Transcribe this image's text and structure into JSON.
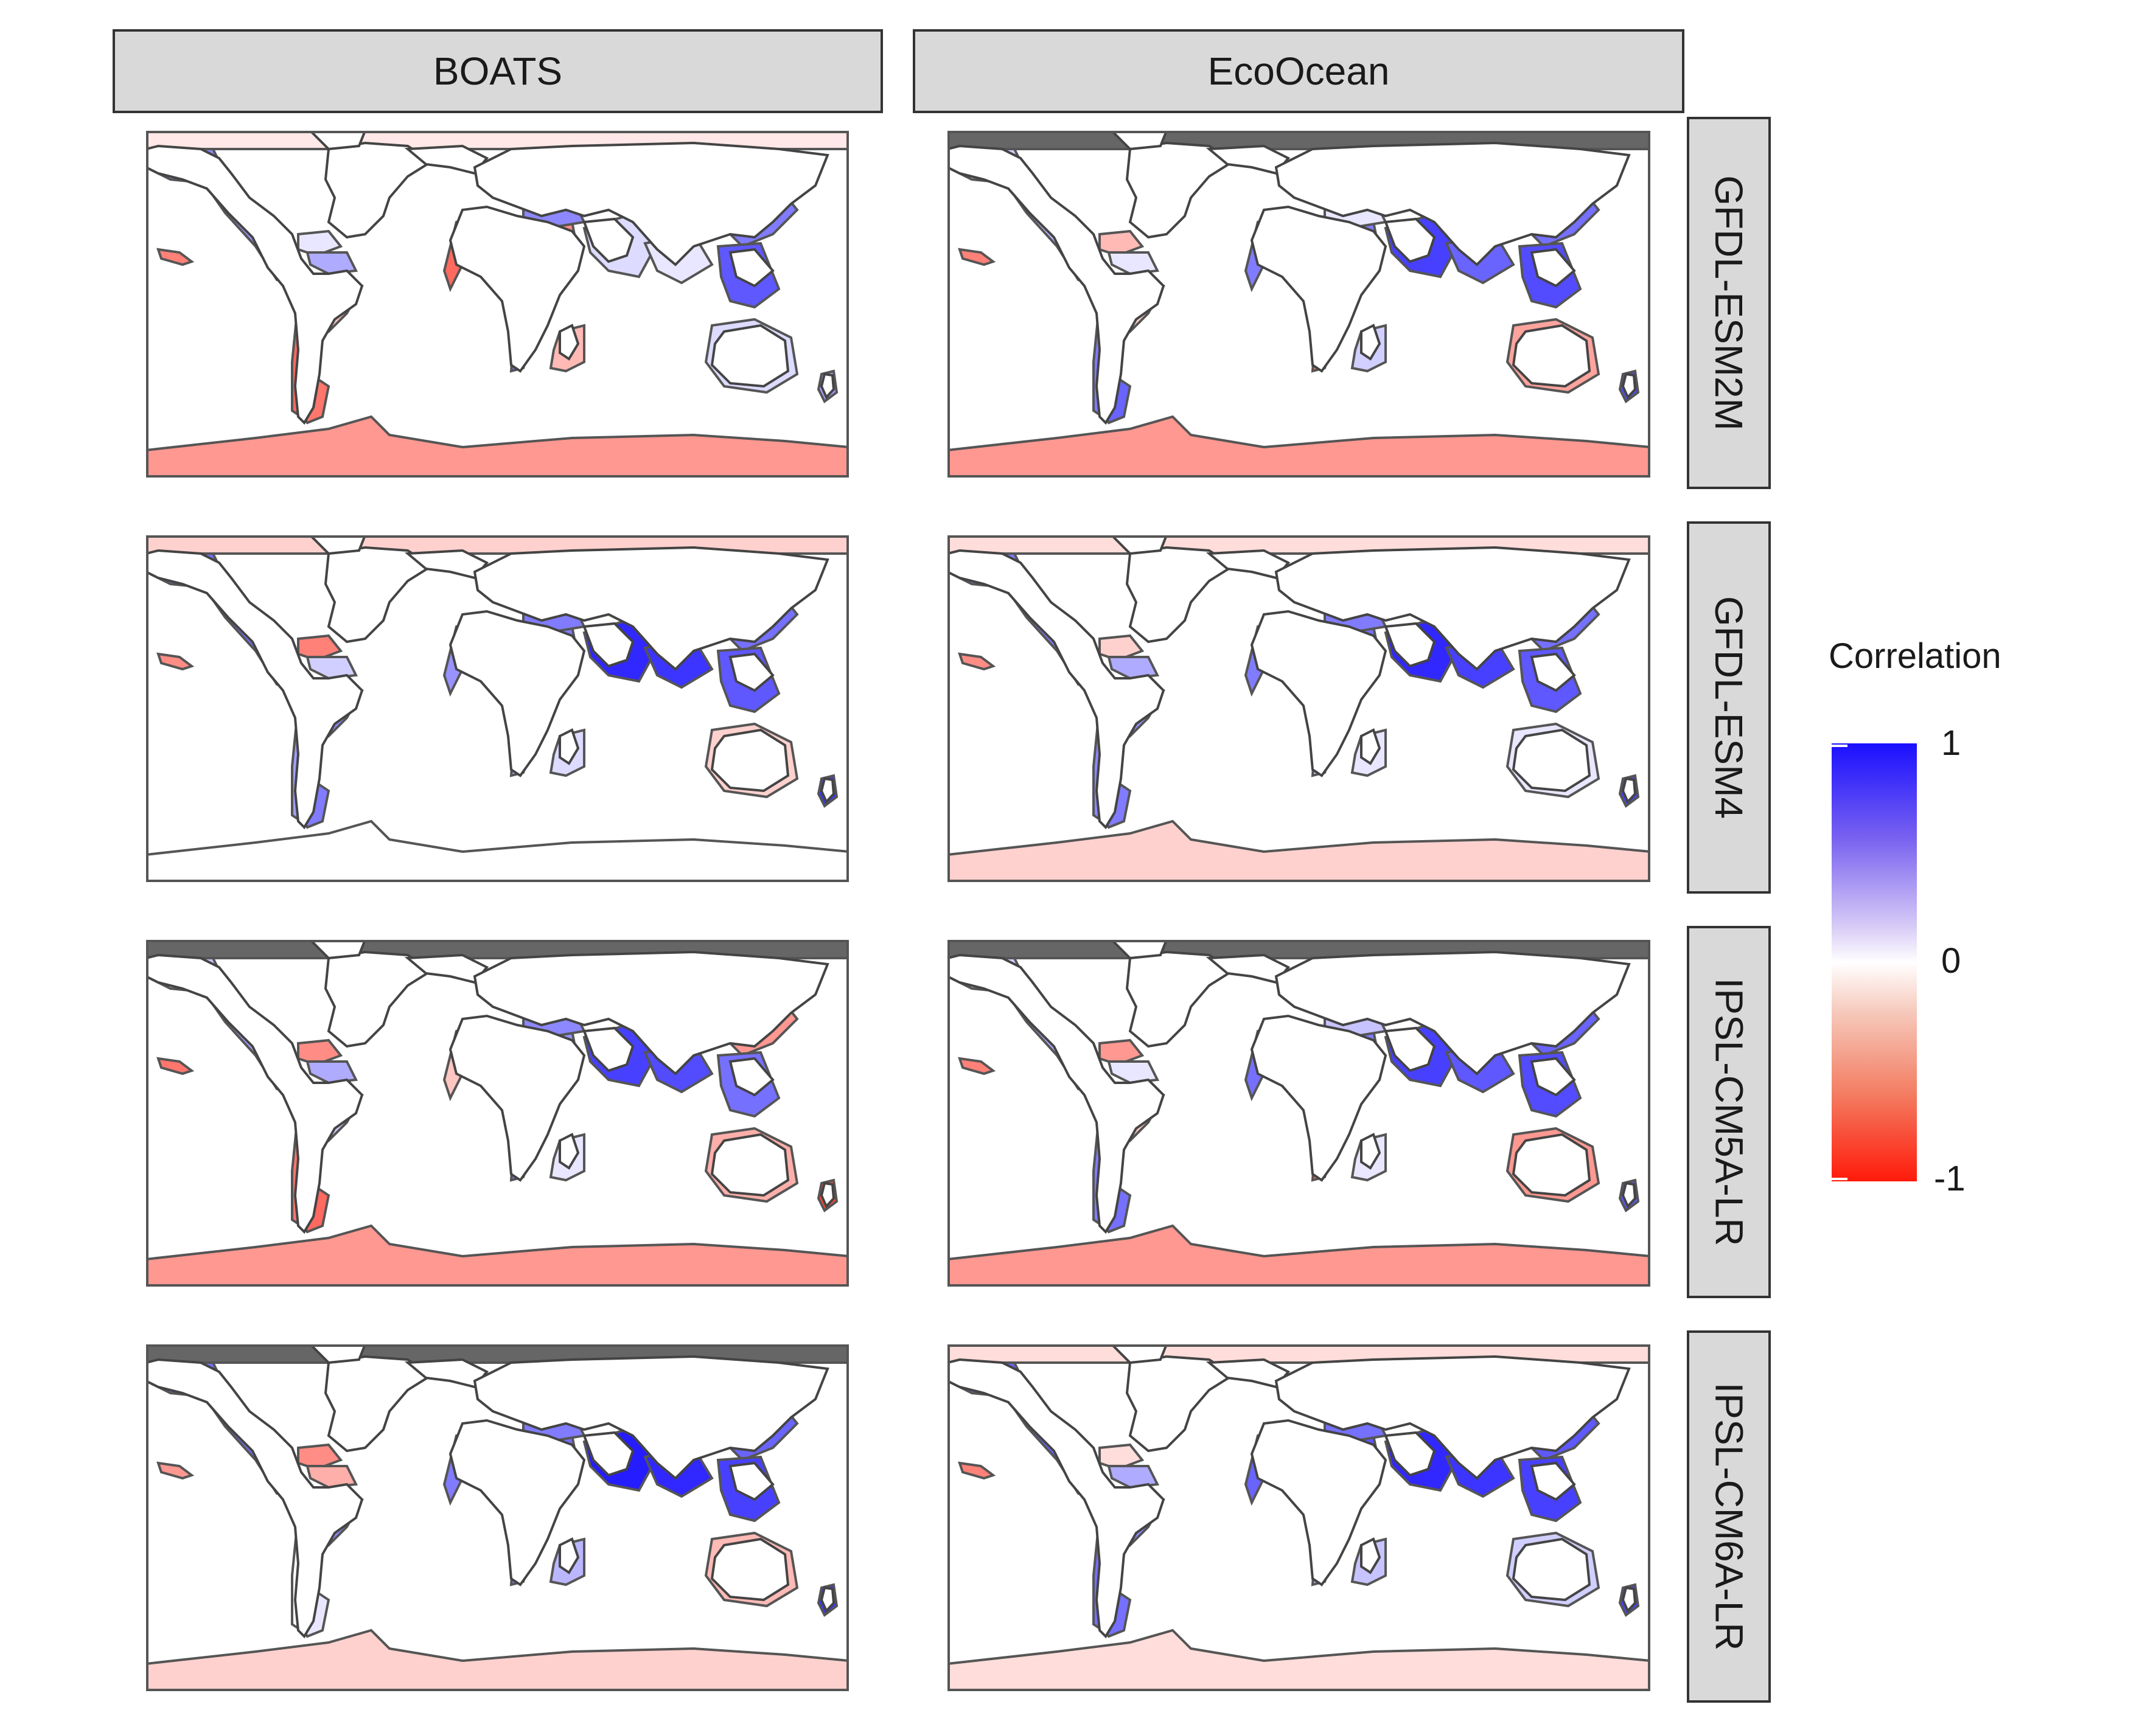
{
  "columns": [
    "BOATS",
    "EcoOcean"
  ],
  "rows": [
    "GFDL-ESM2M",
    "GFDL-ESM4",
    "IPSL-CM5A-LR",
    "IPSL-CM6A-LR"
  ],
  "legend": {
    "title": "Correlation",
    "ticks": [
      "1",
      "0",
      "-1"
    ],
    "colors": {
      "high": "#1a10ff",
      "mid": "#ffffff",
      "low": "#ff1a0a",
      "missing": "#666666"
    }
  },
  "panels": [
    {
      "col": "BOATS",
      "row": "GFDL-ESM2M",
      "regions": {
        "arctic": -0.1,
        "north_pacific": 0.5,
        "west_americas": 0.45,
        "north_atlantic_w": -0.3,
        "caribbean": 0.1,
        "gulf": 0.35,
        "east_americas": -0.25,
        "humboldt": -0.65,
        "patagonia": -0.6,
        "europe_north": -0.3,
        "canary": -0.65,
        "guinea": -0.5,
        "benguela": 0.6,
        "agulhas": -0.3,
        "med": 0.5,
        "arabian": 0.15,
        "bengal": 0.1,
        "east_asia": 0.55,
        "se_asia": 0.7,
        "australia": 0.15,
        "new_zealand": 0.4,
        "siberia": -0.6,
        "antarctic": -0.45,
        "hawaii": -0.55
      }
    },
    {
      "col": "EcoOcean",
      "row": "GFDL-ESM2M",
      "regions": {
        "arctic": null,
        "north_pacific": 0.2,
        "west_americas": 0.3,
        "north_atlantic_w": -0.1,
        "caribbean": -0.3,
        "gulf": 0.1,
        "east_americas": -0.2,
        "humboldt": 0.55,
        "patagonia": 0.65,
        "europe_north": 0.4,
        "canary": 0.55,
        "guinea": 0.55,
        "benguela": -0.6,
        "agulhas": 0.2,
        "med": 0.1,
        "arabian": 0.8,
        "bengal": 0.65,
        "east_asia": 0.6,
        "se_asia": 0.75,
        "australia": -0.4,
        "new_zealand": 0.75,
        "siberia": -0.2,
        "antarctic": -0.45,
        "hawaii": -0.55
      }
    },
    {
      "col": "BOATS",
      "row": "GFDL-ESM4",
      "regions": {
        "arctic": -0.2,
        "north_pacific": 0.6,
        "west_americas": 0.6,
        "north_atlantic_w": -0.65,
        "caribbean": -0.55,
        "gulf": 0.2,
        "east_americas": 0.5,
        "humboldt": 0.4,
        "patagonia": 0.55,
        "europe_north": 0.5,
        "canary": 0.45,
        "guinea": 0.55,
        "benguela": 0.35,
        "agulhas": 0.15,
        "med": 0.55,
        "arabian": 0.9,
        "bengal": 0.85,
        "east_asia": 0.6,
        "se_asia": 0.7,
        "australia": -0.2,
        "new_zealand": 0.85,
        "siberia": 0.55,
        "antarctic": 0.0,
        "hawaii": -0.5
      }
    },
    {
      "col": "EcoOcean",
      "row": "GFDL-ESM4",
      "regions": {
        "arctic": -0.15,
        "north_pacific": 0.55,
        "west_americas": 0.55,
        "north_atlantic_w": -0.4,
        "caribbean": -0.2,
        "gulf": 0.35,
        "east_americas": 0.45,
        "humboldt": 0.5,
        "patagonia": 0.55,
        "europe_north": 0.45,
        "canary": 0.55,
        "guinea": 0.6,
        "benguela": 0.2,
        "agulhas": 0.1,
        "med": 0.55,
        "arabian": 0.9,
        "bengal": 0.8,
        "east_asia": 0.6,
        "se_asia": 0.7,
        "australia": 0.1,
        "new_zealand": 0.8,
        "siberia": 0.5,
        "antarctic": -0.2,
        "hawaii": -0.5
      }
    },
    {
      "col": "BOATS",
      "row": "IPSL-CM5A-LR",
      "regions": {
        "arctic": null,
        "north_pacific": 0.25,
        "west_americas": 0.4,
        "north_atlantic_w": 0.3,
        "caribbean": -0.5,
        "gulf": 0.35,
        "east_americas": 0.2,
        "humboldt": -0.6,
        "patagonia": -0.65,
        "europe_north": 0.35,
        "canary": -0.25,
        "guinea": 0.45,
        "benguela": 0.55,
        "agulhas": 0.1,
        "med": 0.5,
        "arabian": 0.8,
        "bengal": 0.75,
        "east_asia": -0.45,
        "se_asia": 0.6,
        "australia": -0.35,
        "new_zealand": -0.8,
        "siberia": -0.55,
        "antarctic": -0.45,
        "hawaii": -0.6
      }
    },
    {
      "col": "EcoOcean",
      "row": "IPSL-CM5A-LR",
      "regions": {
        "arctic": null,
        "north_pacific": 0.2,
        "west_americas": 0.35,
        "north_atlantic_w": -0.2,
        "caribbean": -0.45,
        "gulf": 0.1,
        "east_americas": -0.25,
        "humboldt": 0.55,
        "patagonia": 0.6,
        "europe_north": 0.4,
        "canary": 0.6,
        "guinea": 0.55,
        "benguela": -0.6,
        "agulhas": 0.1,
        "med": 0.25,
        "arabian": 0.8,
        "bengal": 0.7,
        "east_asia": 0.65,
        "se_asia": 0.75,
        "australia": -0.45,
        "new_zealand": 0.7,
        "siberia": -0.25,
        "antarctic": -0.45,
        "hawaii": -0.55
      }
    },
    {
      "col": "BOATS",
      "row": "IPSL-CM6A-LR",
      "regions": {
        "arctic": null,
        "north_pacific": 0.6,
        "west_americas": 0.6,
        "north_atlantic_w": -0.5,
        "caribbean": -0.5,
        "gulf": -0.35,
        "east_americas": 0.5,
        "humboldt": 0.0,
        "patagonia": 0.1,
        "europe_north": 0.55,
        "canary": 0.55,
        "guinea": 0.6,
        "benguela": 0.55,
        "agulhas": 0.3,
        "med": 0.55,
        "arabian": 0.95,
        "bengal": 0.9,
        "east_asia": 0.65,
        "se_asia": 0.8,
        "australia": -0.3,
        "new_zealand": 0.85,
        "siberia": 0.55,
        "antarctic": -0.2,
        "hawaii": -0.45
      }
    },
    {
      "col": "EcoOcean",
      "row": "IPSL-CM6A-LR",
      "regions": {
        "arctic": -0.15,
        "north_pacific": 0.65,
        "west_americas": 0.65,
        "north_atlantic_w": -0.3,
        "caribbean": -0.15,
        "gulf": 0.35,
        "east_americas": 0.5,
        "humboldt": 0.6,
        "patagonia": 0.6,
        "europe_north": 0.55,
        "canary": 0.65,
        "guinea": 0.7,
        "benguela": 0.3,
        "agulhas": 0.25,
        "med": 0.6,
        "arabian": 0.9,
        "bengal": 0.85,
        "east_asia": 0.7,
        "se_asia": 0.8,
        "australia": 0.2,
        "new_zealand": 0.8,
        "siberia": 0.5,
        "antarctic": -0.15,
        "hawaii": -0.55
      }
    }
  ]
}
